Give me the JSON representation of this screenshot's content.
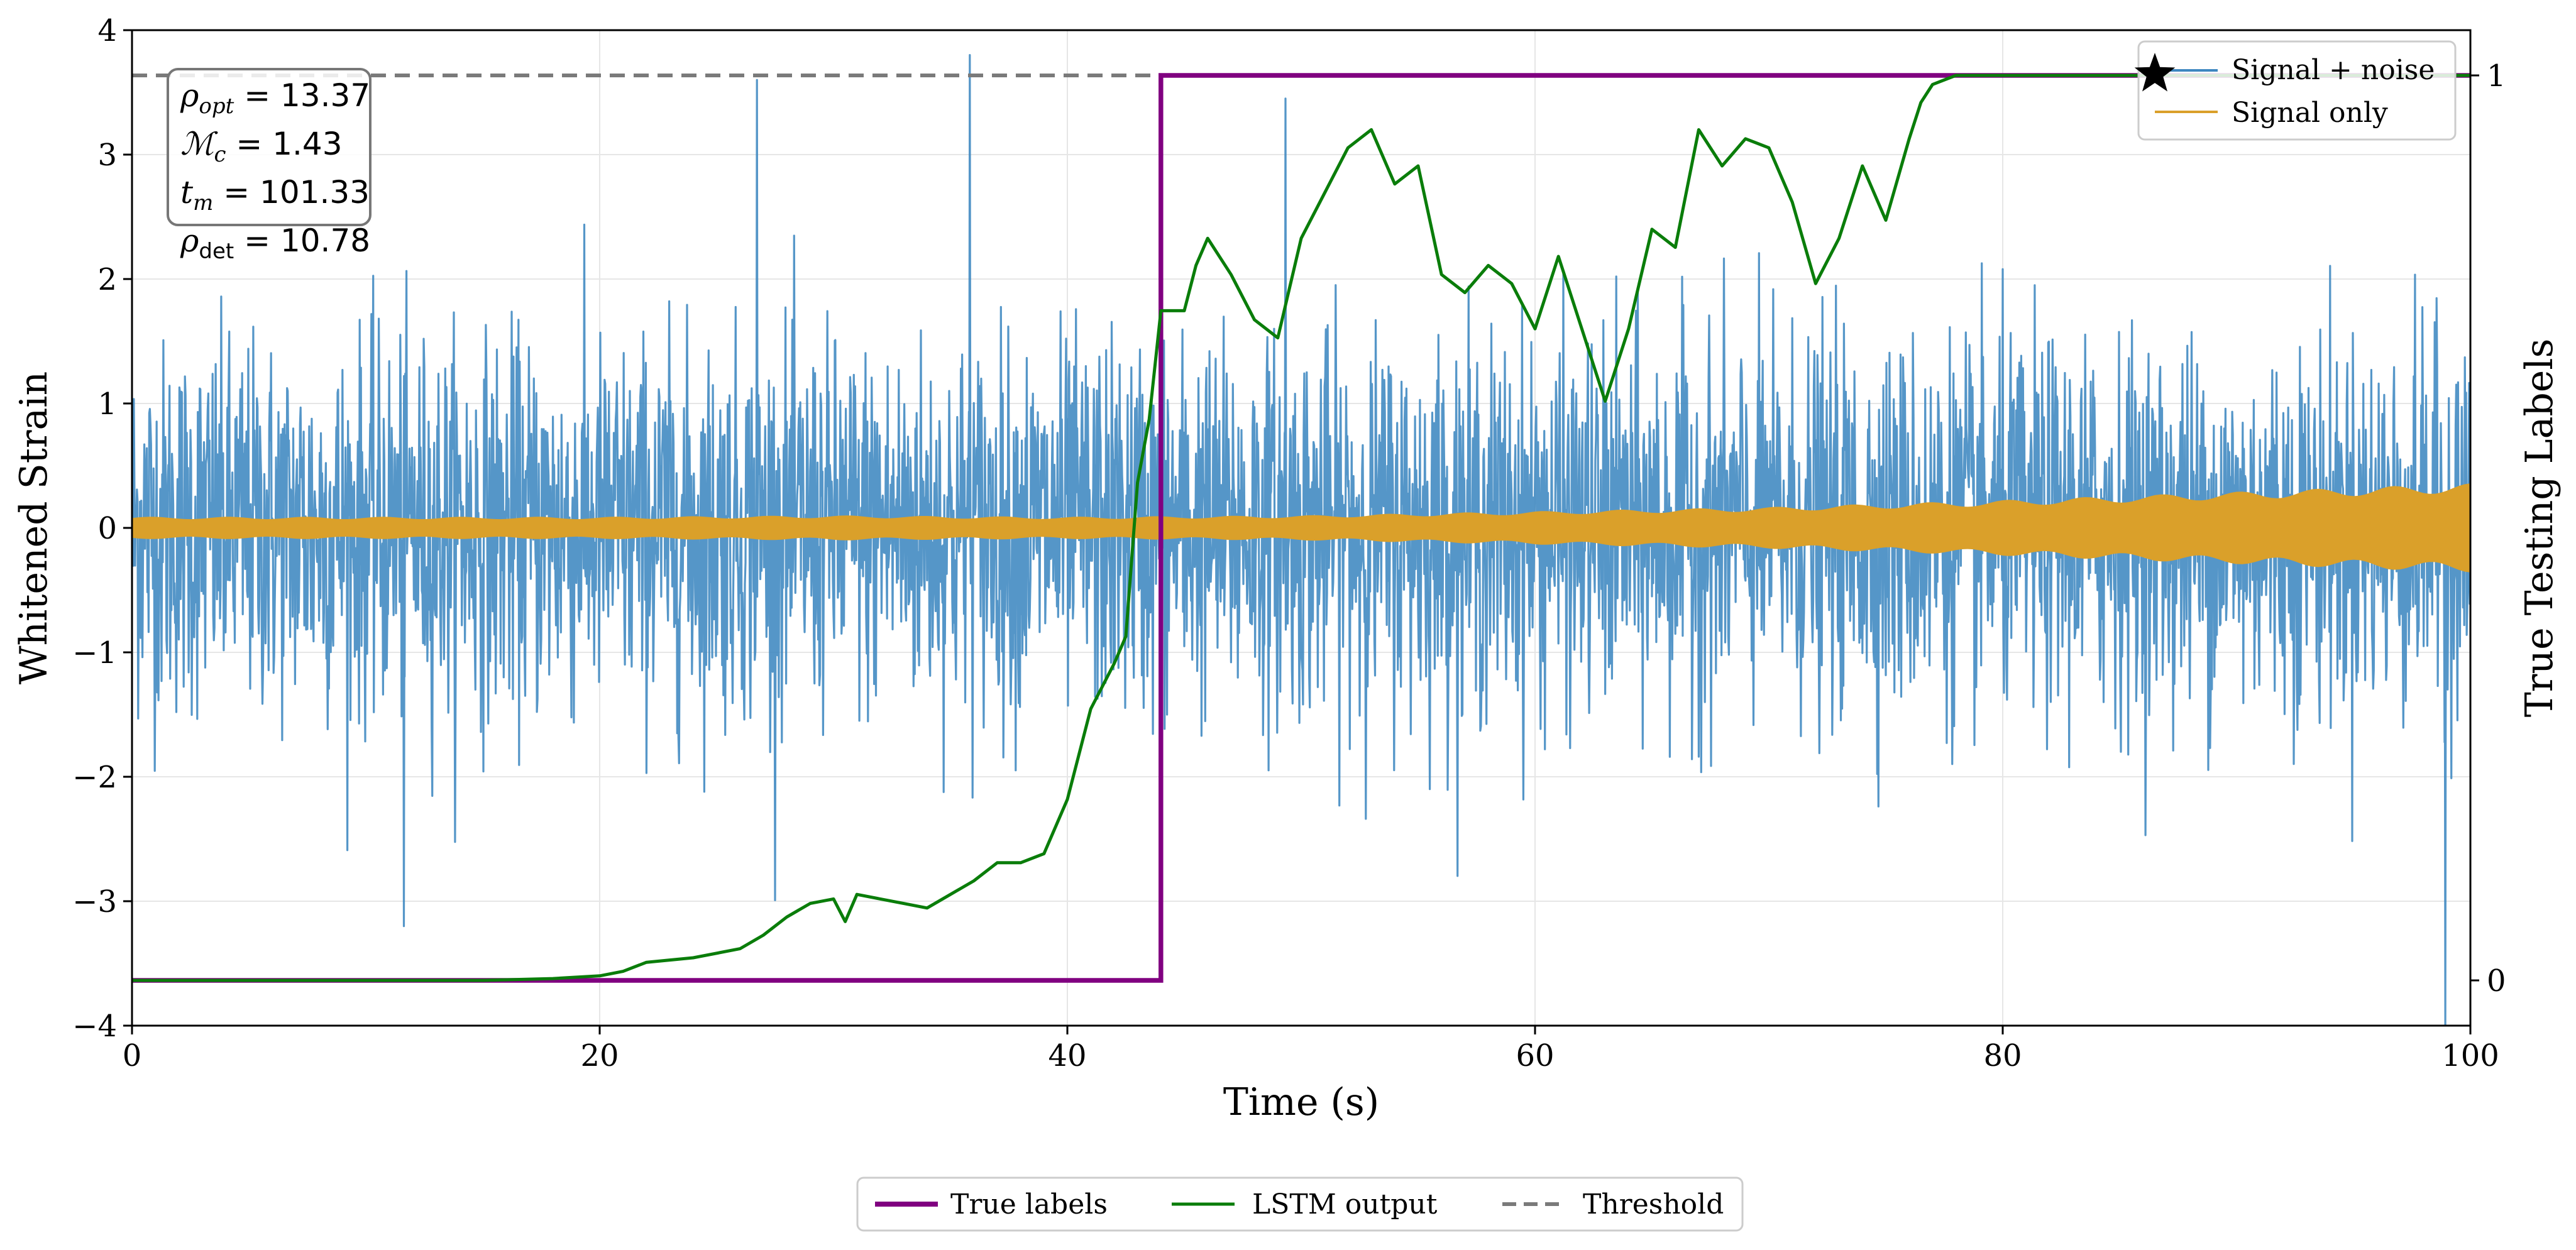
{
  "chart_data": {
    "type": "line",
    "xlabel": "Time (s)",
    "ylabel": "Whitened Strain",
    "y2label": "True Testing Labels",
    "xlim": [
      0,
      100
    ],
    "ylim": [
      -4,
      4
    ],
    "y2lim": [
      -0.05,
      1.05
    ],
    "x_ticks": [
      0,
      20,
      40,
      60,
      80,
      100
    ],
    "y_ticks": [
      -4,
      -3,
      -2,
      -1,
      0,
      1,
      2,
      3,
      4
    ],
    "y2_ticks": [
      0,
      1
    ],
    "x_tick_labels": [
      "0",
      "20",
      "40",
      "60",
      "80",
      "100"
    ],
    "y_tick_labels": [
      "−4",
      "−3",
      "−2",
      "−1",
      "0",
      "1",
      "2",
      "3",
      "4"
    ],
    "y2_tick_labels": [
      "0",
      "1"
    ],
    "grid": true,
    "threshold": 1.0,
    "label_step_time": 44.0,
    "signal_envelope": {
      "times": [
        0,
        10,
        20,
        30,
        40,
        50,
        60,
        70,
        80,
        90,
        100
      ],
      "amplitudes": [
        0.08,
        0.08,
        0.08,
        0.09,
        0.08,
        0.09,
        0.12,
        0.15,
        0.2,
        0.26,
        0.32
      ]
    },
    "noise_amplitude_typical": 1.2,
    "noise_peaks": [
      3.8,
      -3.2,
      3.6,
      -4.0,
      3.45
    ],
    "lstm_output": {
      "x": [
        0,
        5,
        10,
        15,
        18,
        20,
        21,
        22,
        24,
        26,
        27,
        28,
        29,
        30,
        30.5,
        31,
        32,
        33,
        34,
        35,
        36,
        37,
        38,
        39,
        40,
        40.5,
        41,
        42,
        42.5,
        43,
        43.5,
        44,
        44.5,
        45,
        45.5,
        46,
        47,
        48,
        49,
        50,
        51,
        52,
        53,
        54,
        55,
        56,
        57,
        58,
        59,
        60,
        61,
        62,
        63,
        64,
        65,
        66,
        67,
        68,
        69,
        70,
        71,
        72,
        73,
        74,
        75,
        76,
        76.5,
        77,
        78,
        79,
        80,
        85,
        90,
        95,
        100
      ],
      "y": [
        0.0,
        0.0,
        0.0,
        0.0,
        0.002,
        0.005,
        0.01,
        0.02,
        0.025,
        0.035,
        0.05,
        0.07,
        0.085,
        0.09,
        0.065,
        0.095,
        0.09,
        0.085,
        0.08,
        0.095,
        0.11,
        0.13,
        0.13,
        0.14,
        0.2,
        0.25,
        0.3,
        0.35,
        0.38,
        0.55,
        0.62,
        0.74,
        0.74,
        0.74,
        0.79,
        0.82,
        0.78,
        0.73,
        0.71,
        0.82,
        0.87,
        0.92,
        0.94,
        0.88,
        0.9,
        0.78,
        0.76,
        0.79,
        0.77,
        0.72,
        0.8,
        0.72,
        0.64,
        0.72,
        0.83,
        0.81,
        0.94,
        0.9,
        0.93,
        0.92,
        0.86,
        0.77,
        0.82,
        0.9,
        0.84,
        0.93,
        0.97,
        0.99,
        1.0,
        1.0,
        1.0,
        1.0,
        1.0,
        1.0,
        1.0
      ]
    },
    "legend_top": {
      "position": "top-right",
      "entries": [
        "Signal + noise",
        "Signal only"
      ]
    },
    "legend_bottom": {
      "position": "bottom-center",
      "entries": [
        "True labels",
        "LSTM output",
        "Threshold"
      ]
    },
    "annotation_box": {
      "rho_opt": "13.37",
      "mc": "1.43",
      "tm": "101.33",
      "rho_det": "10.78"
    }
  },
  "stats": {
    "rho_opt_symbol": "ρ",
    "rho_opt_sub": "opt",
    "rho_opt_value": "13.37",
    "mc_symbol": "ℳ",
    "mc_sub": "c",
    "mc_value": "1.43",
    "tm_symbol": "t",
    "tm_sub": "m",
    "tm_value": "101.33",
    "rho_det_symbol": "ρ",
    "rho_det_sub": "det",
    "rho_det_value": "10.78",
    "equals": " = "
  },
  "colors": {
    "noise": "#3d87c0",
    "signal": "#daa02a",
    "lstm": "#0a7d0a",
    "labels": "#800080",
    "threshold": "#7a7a7a",
    "star": "#000000"
  }
}
